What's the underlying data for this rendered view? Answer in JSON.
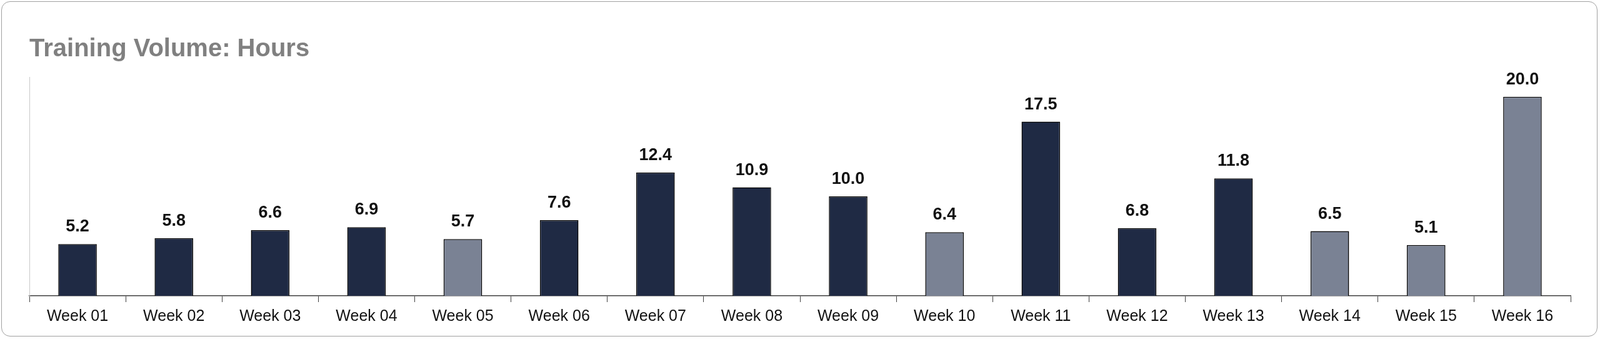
{
  "chart_data": {
    "type": "bar",
    "title": "Training Volume: Hours",
    "categories": [
      "Week 01",
      "Week 02",
      "Week 03",
      "Week 04",
      "Week 05",
      "Week 06",
      "Week 07",
      "Week 08",
      "Week 09",
      "Week 10",
      "Week 11",
      "Week 12",
      "Week 13",
      "Week 14",
      "Week 15",
      "Week 16"
    ],
    "values": [
      5.2,
      5.8,
      6.6,
      6.9,
      5.7,
      7.6,
      12.4,
      10.9,
      10.0,
      6.4,
      17.5,
      6.8,
      11.8,
      6.5,
      5.1,
      20.0
    ],
    "value_labels": [
      "5.2",
      "5.8",
      "6.6",
      "6.9",
      "5.7",
      "7.6",
      "12.4",
      "10.9",
      "10.0",
      "6.4",
      "17.5",
      "6.8",
      "11.8",
      "6.5",
      "5.1",
      "20.0"
    ],
    "colors": [
      "#1f2a44",
      "#1f2a44",
      "#1f2a44",
      "#1f2a44",
      "#7a8294",
      "#1f2a44",
      "#1f2a44",
      "#1f2a44",
      "#1f2a44",
      "#7a8294",
      "#1f2a44",
      "#1f2a44",
      "#1f2a44",
      "#7a8294",
      "#7a8294",
      "#7a8294"
    ],
    "ylim": [
      0,
      22
    ],
    "yticks": [
      0,
      22
    ],
    "grid": false,
    "data_labels": true,
    "tick_labels": "x"
  }
}
